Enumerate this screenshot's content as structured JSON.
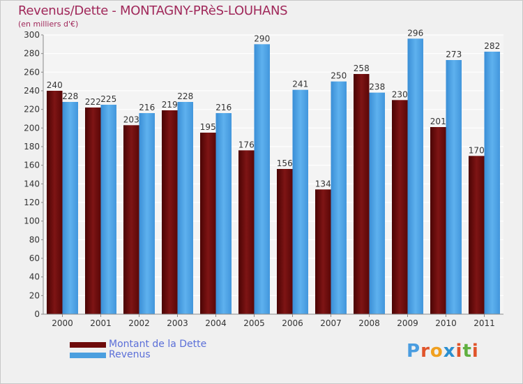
{
  "chart_data": {
    "type": "bar",
    "title": "Revenus/Dette - MONTAGNY-PRèS-LOUHANS",
    "subtitle": "(en milliers d'€)",
    "categories": [
      "2000",
      "2001",
      "2002",
      "2003",
      "2004",
      "2005",
      "2006",
      "2007",
      "2008",
      "2009",
      "2010",
      "2011"
    ],
    "series": [
      {
        "name": "Montant de la Dette",
        "color": "#6e0a0a",
        "values": [
          240,
          222,
          203,
          219,
          195,
          176,
          156,
          134,
          258,
          230,
          201,
          170
        ]
      },
      {
        "name": "Revenus",
        "color": "#4b9fdf",
        "values": [
          228,
          225,
          216,
          228,
          216,
          290,
          241,
          250,
          238,
          296,
          273,
          282
        ]
      }
    ],
    "ylim": [
      0,
      300
    ],
    "yticks": [
      0,
      20,
      40,
      60,
      80,
      100,
      120,
      140,
      160,
      180,
      200,
      220,
      240,
      260,
      280,
      300
    ],
    "grid": true,
    "legend": "bottom-left"
  },
  "logo": {
    "letters": [
      "P",
      "r",
      "o",
      "x",
      "i",
      "t",
      "i"
    ],
    "colors": [
      "#4a9de0",
      "#e0542a",
      "#f0a020",
      "#2a8fd0",
      "#e0542a",
      "#60b040",
      "#e0542a"
    ]
  }
}
